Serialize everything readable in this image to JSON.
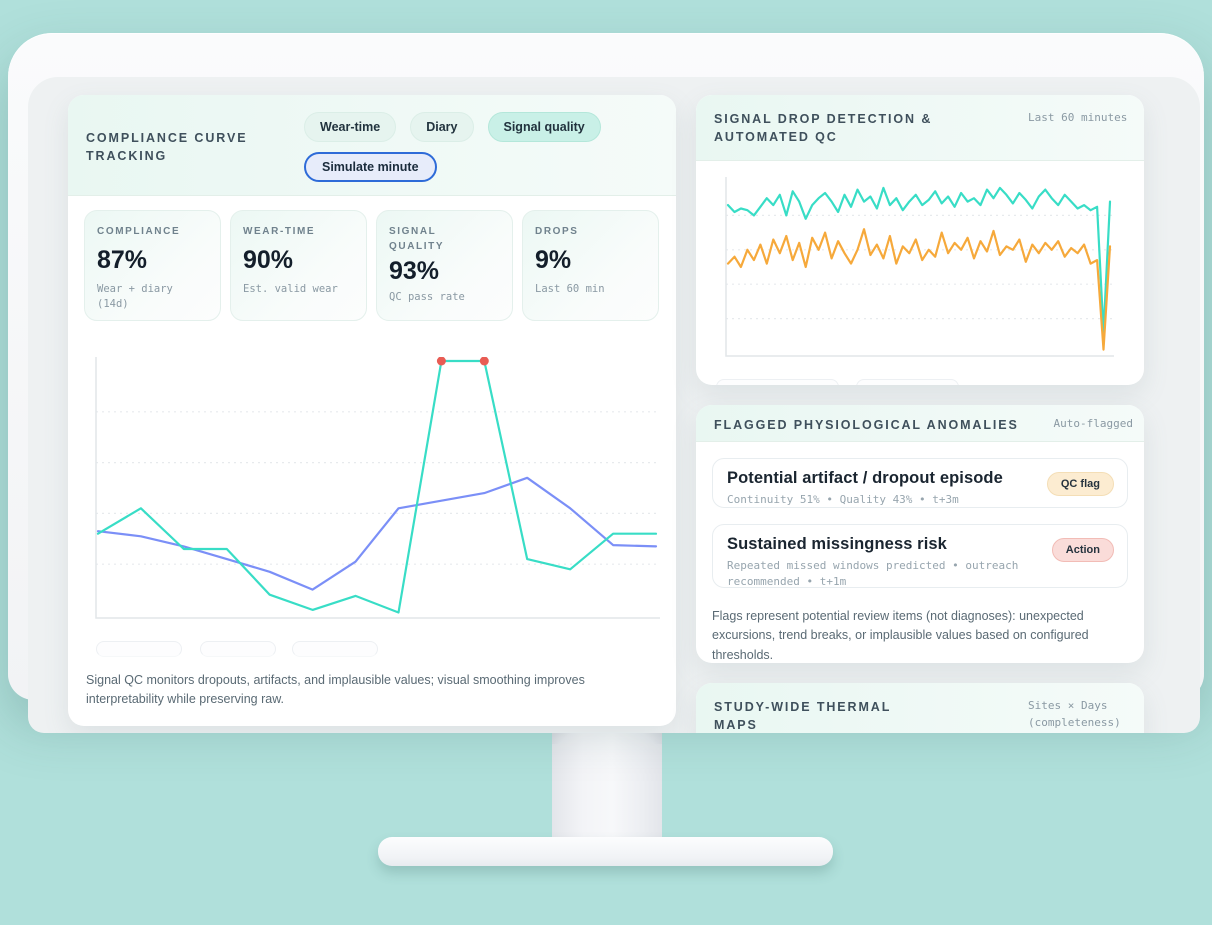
{
  "scene": {
    "background": "#b0e0db",
    "device": "monitor-mockup"
  },
  "left_panel": {
    "title": "COMPLIANCE CURVE TRACKING",
    "tabs": [
      {
        "label": "Wear-time",
        "active": false
      },
      {
        "label": "Diary",
        "active": false
      },
      {
        "label": "Signal quality",
        "active": true
      }
    ],
    "simulate_button": "Simulate minute",
    "stats": [
      {
        "label": "COMPLIANCE",
        "value": "87%",
        "sub": "Wear + diary (14d)"
      },
      {
        "label": "WEAR-TIME",
        "value": "90%",
        "sub": "Est. valid wear"
      },
      {
        "label": "SIGNAL QUALITY",
        "value": "93%",
        "sub": "QC pass rate"
      },
      {
        "label": "DROPS",
        "value": "9%",
        "sub": "Last 60 min"
      }
    ],
    "footnote": "Signal QC monitors dropouts, artifacts, and implausible values; visual smoothing improves interpretability while preserving raw."
  },
  "signal_panel": {
    "title": "SIGNAL DROP DETECTION & AUTOMATED QC",
    "caption": "Last 60 minutes"
  },
  "anomaly_panel": {
    "title": "FLAGGED PHYSIOLOGICAL ANOMALIES",
    "caption": "Auto-flagged",
    "items": [
      {
        "title": "Potential artifact / dropout episode",
        "detail": "Continuity 51% • Quality 43% • t+3m",
        "badge": "QC flag"
      },
      {
        "title": "Sustained missingness risk",
        "detail": "Repeated missed windows predicted • outreach recommended • t+1m",
        "badge": "Action"
      }
    ],
    "footnote": "Flags represent potential review items (not diagnoses): unexpected excursions, trend breaks, or implausible values based on configured thresholds."
  },
  "thermal_panel": {
    "title": "STUDY-WIDE THERMAL MAPS",
    "caption": "Sites × Days (completeness)"
  },
  "colors": {
    "teal_series": "#38ddc6",
    "blue_series": "#7b8ff7",
    "orange_series": "#f6a93b",
    "marker_red": "#e85c54",
    "active_tab_bg": "#c9f0e7",
    "simulate_border": "#2e6bd8",
    "qc_flag_badge_bg": "#fcecd1",
    "action_badge_bg": "#fadcd9"
  },
  "chart_data": [
    {
      "id": "compliance_curve",
      "type": "line",
      "x_points": 14,
      "ylim": [
        0,
        100
      ],
      "gridlines": [
        20,
        40,
        60,
        80
      ],
      "grid_style": "dotted",
      "legend_position": "none",
      "series": [
        {
          "name": "compliance-trend",
          "color": "#7b8ff7",
          "values": [
            33,
            31,
            27,
            22,
            17,
            10,
            21,
            42,
            45,
            48,
            54,
            42,
            27.5,
            27
          ]
        },
        {
          "name": "signal-quality-trend",
          "color": "#38ddc6",
          "values": [
            32,
            42,
            26,
            26,
            8,
            2,
            7.5,
            1,
            100,
            100,
            22,
            18,
            32,
            32
          ],
          "marker_indices": [
            8,
            9
          ],
          "marker_color": "#e85c54"
        }
      ]
    },
    {
      "id": "signal_drop_qc",
      "type": "line",
      "x_points": 60,
      "window": "Last 60 minutes",
      "ylim": [
        0,
        100
      ],
      "gridlines": [
        20,
        40,
        60,
        80
      ],
      "grid_style": "dotted",
      "legend_position": "none",
      "series": [
        {
          "name": "continuity",
          "color": "#38ddc6",
          "values": [
            86,
            82,
            84,
            83,
            80,
            85,
            90,
            86,
            92,
            80,
            94,
            88,
            78,
            86,
            90,
            93,
            88,
            82,
            92,
            85,
            95,
            88,
            91,
            84,
            96,
            86,
            90,
            83,
            88,
            92,
            86,
            89,
            94,
            87,
            91,
            85,
            93,
            88,
            90,
            86,
            95,
            90,
            96,
            92,
            87,
            93,
            89,
            84,
            91,
            95,
            90,
            86,
            92,
            88,
            84,
            86,
            83,
            85,
            12,
            88
          ]
        },
        {
          "name": "quality",
          "color": "#f6a93b",
          "values": [
            52,
            56,
            50,
            60,
            54,
            63,
            52,
            66,
            58,
            68,
            54,
            64,
            50,
            67,
            60,
            70,
            55,
            65,
            58,
            52,
            60,
            72,
            57,
            63,
            55,
            68,
            52,
            62,
            58,
            66,
            54,
            60,
            56,
            70,
            58,
            64,
            60,
            67,
            55,
            65,
            59,
            71,
            57,
            62,
            60,
            66,
            53,
            63,
            58,
            64,
            60,
            65,
            56,
            61,
            58,
            63,
            52,
            54,
            2,
            62
          ]
        }
      ]
    }
  ]
}
